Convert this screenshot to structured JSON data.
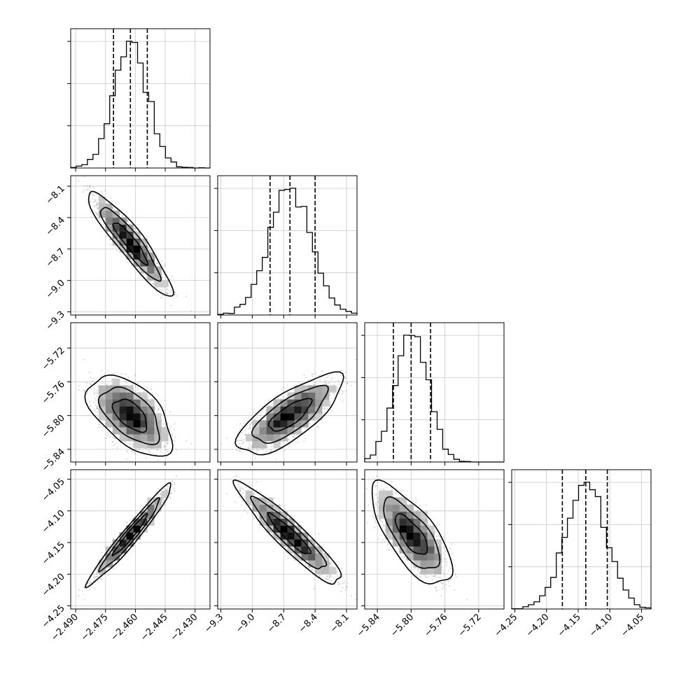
{
  "chart_data": {
    "type": "corner",
    "grid": true,
    "parameters": [
      {
        "range": [
          -2.4925,
          -2.4225
        ],
        "ticks": [
          "-2.490",
          "-2.475",
          "-2.460",
          "-2.445",
          "-2.430"
        ],
        "tick_values": [
          -2.49,
          -2.475,
          -2.46,
          -2.445,
          -2.43
        ],
        "mean": -2.4625,
        "sigma": 0.0085,
        "quantiles": [
          -2.471,
          -2.4625,
          -2.454
        ]
      },
      {
        "range": [
          -9.33,
          -8.0
        ],
        "ticks": [
          "-9.3",
          "-9.0",
          "-8.7",
          "-8.4",
          "-8.1"
        ],
        "tick_values": [
          -9.3,
          -9.0,
          -8.7,
          -8.4,
          -8.1
        ],
        "mean": -8.64,
        "sigma": 0.2,
        "quantiles": [
          -8.83,
          -8.64,
          -8.4
        ]
      },
      {
        "range": [
          -5.855,
          -5.69
        ],
        "ticks": [
          "-5.84",
          "-5.80",
          "-5.76",
          "-5.72"
        ],
        "tick_values": [
          -5.84,
          -5.8,
          -5.76,
          -5.72
        ],
        "mean": -5.7995,
        "sigma": 0.019,
        "quantiles": [
          -5.821,
          -5.8,
          -5.777
        ]
      },
      {
        "range": [
          -4.255,
          -4.035
        ],
        "ticks": [
          "-4.25",
          "-4.20",
          "-4.15",
          "-4.10",
          "-4.05"
        ],
        "tick_values": [
          -4.25,
          -4.2,
          -4.15,
          -4.1,
          -4.05
        ],
        "mean": -4.138,
        "sigma": 0.032,
        "quantiles": [
          -4.175,
          -4.138,
          -4.104
        ]
      }
    ],
    "left_axis_ticks": {
      "row1": [
        "-8.1",
        "-8.4",
        "-8.7",
        "-9.0",
        "-9.3"
      ],
      "row2": [
        "-5.72",
        "-5.76",
        "-5.80",
        "-5.84"
      ],
      "row3": [
        "-4.05",
        "-4.10",
        "-4.15",
        "-4.20",
        "-4.25"
      ]
    },
    "correlations": [
      {
        "pair": [
          0,
          1
        ],
        "rho": -0.92
      },
      {
        "pair": [
          0,
          2
        ],
        "rho": -0.55
      },
      {
        "pair": [
          1,
          2
        ],
        "rho": 0.75
      },
      {
        "pair": [
          0,
          3
        ],
        "rho": 0.97
      },
      {
        "pair": [
          1,
          3
        ],
        "rho": -0.93
      },
      {
        "pair": [
          2,
          3
        ],
        "rho": -0.72
      }
    ],
    "histogram_bins": 25
  }
}
